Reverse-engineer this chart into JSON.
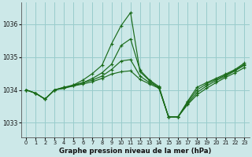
{
  "background_color": "#cce8e8",
  "grid_color": "#99cccc",
  "line_color": "#1a6b1a",
  "title": "Graphe pression niveau de la mer (hPa)",
  "x_ticks": [
    0,
    1,
    2,
    3,
    4,
    5,
    6,
    7,
    8,
    9,
    10,
    11,
    12,
    13,
    14,
    15,
    16,
    17,
    18,
    19,
    20,
    21,
    22,
    23
  ],
  "y_ticks": [
    1033,
    1034,
    1035,
    1036
  ],
  "ylim": [
    1032.55,
    1036.65
  ],
  "xlim": [
    -0.5,
    23.5
  ],
  "series": [
    [
      1034.0,
      1033.9,
      1033.72,
      1034.0,
      1034.05,
      1034.15,
      1034.3,
      1034.5,
      1034.75,
      1035.4,
      1035.95,
      1036.35,
      1034.55,
      1034.28,
      1034.05,
      1033.18,
      1033.18,
      1033.55,
      1033.85,
      1034.05,
      1034.22,
      1034.38,
      1034.52,
      1034.68
    ],
    [
      1034.0,
      1033.9,
      1033.72,
      1034.0,
      1034.05,
      1034.12,
      1034.22,
      1034.35,
      1034.52,
      1034.78,
      1035.35,
      1035.55,
      1034.6,
      1034.3,
      1034.1,
      1033.18,
      1033.18,
      1033.58,
      1033.92,
      1034.12,
      1034.28,
      1034.42,
      1034.58,
      1034.75
    ],
    [
      1034.0,
      1033.9,
      1033.72,
      1034.0,
      1034.08,
      1034.15,
      1034.22,
      1034.3,
      1034.42,
      1034.62,
      1034.88,
      1034.92,
      1034.42,
      1034.22,
      1034.08,
      1033.18,
      1033.18,
      1033.62,
      1034.0,
      1034.18,
      1034.32,
      1034.45,
      1034.6,
      1034.78
    ],
    [
      1034.0,
      1033.9,
      1033.72,
      1034.0,
      1034.08,
      1034.12,
      1034.18,
      1034.25,
      1034.35,
      1034.48,
      1034.55,
      1034.58,
      1034.32,
      1034.18,
      1034.05,
      1033.18,
      1033.18,
      1033.65,
      1034.08,
      1034.22,
      1034.35,
      1034.48,
      1034.62,
      1034.82
    ]
  ]
}
